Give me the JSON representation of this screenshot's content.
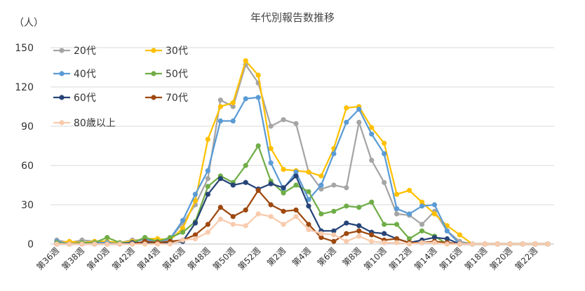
{
  "chart_data": {
    "type": "line",
    "title": "年代別報告数推移",
    "ylabel": "（人）",
    "ylim": [
      0,
      150
    ],
    "yticks": [
      0,
      30,
      60,
      90,
      120,
      150
    ],
    "grid": true,
    "legend_position": "top-left",
    "x": [
      "第36週",
      "第37週",
      "第38週",
      "第39週",
      "第40週",
      "第41週",
      "第42週",
      "第43週",
      "第44週",
      "第45週",
      "第46週",
      "第47週",
      "第48週",
      "第49週",
      "第50週",
      "第51週",
      "第52週",
      "第53週",
      "第2週",
      "第3週",
      "第4週",
      "第5週",
      "第6週",
      "第7週",
      "第8週",
      "第9週",
      "第10週",
      "第11週",
      "第12週",
      "第13週",
      "第14週",
      "第15週",
      "第16週",
      "第17週",
      "第18週",
      "第19週",
      "第20週",
      "第21週",
      "第22週",
      "第23週"
    ],
    "xtick_labels": [
      "第36週",
      "第38週",
      "第40週",
      "第42週",
      "第44週",
      "第46週",
      "第48週",
      "第50週",
      "第52週",
      "第2週",
      "第4週",
      "第6週",
      "第8週",
      "第10週",
      "第12週",
      "第14週",
      "第16週",
      "第18週",
      "第20週",
      "第22週"
    ],
    "series": [
      {
        "name": "20代",
        "color": "#a5a5a5",
        "values": [
          3,
          1,
          3,
          2,
          1,
          1,
          3,
          3,
          2,
          4,
          16,
          30,
          50,
          110,
          105,
          137,
          123,
          90,
          95,
          92,
          55,
          42,
          45,
          43,
          93,
          64,
          47,
          23,
          22,
          15,
          25,
          10,
          2,
          0,
          0,
          0,
          0,
          0,
          0,
          0
        ]
      },
      {
        "name": "30代",
        "color": "#ffc000",
        "values": [
          1,
          2,
          1,
          2,
          2,
          1,
          2,
          4,
          4,
          3,
          12,
          33,
          80,
          105,
          108,
          140,
          129,
          73,
          57,
          56,
          55,
          52,
          73,
          104,
          105,
          89,
          77,
          38,
          41,
          32,
          23,
          14,
          7,
          0,
          0,
          0,
          0,
          0,
          0,
          0
        ]
      },
      {
        "name": "40代",
        "color": "#5b9bd5",
        "values": [
          2,
          0,
          1,
          1,
          1,
          0,
          1,
          4,
          1,
          4,
          18,
          38,
          56,
          94,
          94,
          111,
          112,
          62,
          42,
          55,
          34,
          45,
          69,
          93,
          103,
          84,
          69,
          27,
          23,
          29,
          30,
          10,
          0,
          0,
          0,
          0,
          0,
          0,
          0,
          0
        ]
      },
      {
        "name": "50代",
        "color": "#70ad47",
        "values": [
          1,
          0,
          1,
          1,
          5,
          1,
          1,
          5,
          2,
          5,
          9,
          17,
          44,
          52,
          47,
          60,
          75,
          48,
          39,
          45,
          40,
          23,
          25,
          29,
          28,
          32,
          15,
          15,
          4,
          10,
          6,
          0,
          0,
          0,
          0,
          0,
          0,
          0,
          0,
          0
        ]
      },
      {
        "name": "60代",
        "color": "#264478",
        "values": [
          0,
          0,
          0,
          0,
          0,
          0,
          1,
          1,
          1,
          1,
          2,
          16,
          38,
          50,
          45,
          47,
          42,
          46,
          43,
          52,
          29,
          10,
          10,
          16,
          14,
          9,
          8,
          4,
          1,
          3,
          5,
          4,
          0,
          0,
          0,
          0,
          0,
          0,
          0,
          0
        ]
      },
      {
        "name": "70代",
        "color": "#9e480e",
        "values": [
          0,
          0,
          0,
          0,
          0,
          0,
          0,
          2,
          1,
          2,
          3,
          7,
          15,
          28,
          21,
          26,
          41,
          30,
          25,
          26,
          15,
          5,
          2,
          8,
          10,
          7,
          3,
          4,
          1,
          1,
          2,
          1,
          0,
          0,
          0,
          0,
          0,
          0,
          0,
          0
        ]
      },
      {
        "name": "80歳以上",
        "color": "#f8cbad",
        "values": [
          0,
          0,
          0,
          0,
          0,
          0,
          0,
          0,
          0,
          0,
          3,
          4,
          9,
          19,
          15,
          14,
          23,
          21,
          15,
          21,
          11,
          8,
          7,
          2,
          6,
          2,
          1,
          1,
          0,
          1,
          1,
          0,
          0,
          0,
          0,
          0,
          0,
          0,
          0,
          0
        ]
      }
    ]
  }
}
